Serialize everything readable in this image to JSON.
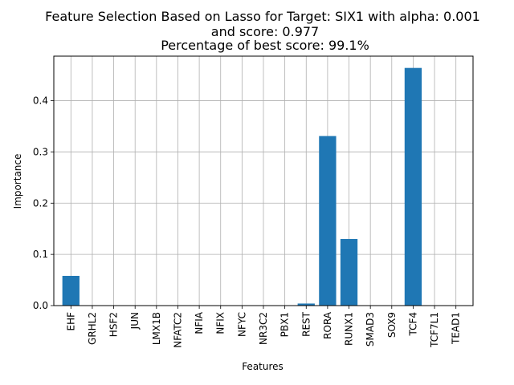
{
  "chart_data": {
    "type": "bar",
    "title_lines": [
      "Feature Selection Based on Lasso for Target: SIX1 with alpha: 0.001",
      "and score: 0.977",
      "Percentage of best score: 99.1%"
    ],
    "xlabel": "Features",
    "ylabel": "Importance",
    "categories": [
      "EHF",
      "GRHL2",
      "HSF2",
      "JUN",
      "LMX1B",
      "NFATC2",
      "NFIA",
      "NFIX",
      "NFYC",
      "NR3C2",
      "PBX1",
      "REST",
      "RORA",
      "RUNX1",
      "SMAD3",
      "SOX9",
      "TCF4",
      "TCF7L1",
      "TEAD1"
    ],
    "values": [
      0.058,
      0,
      0,
      0,
      0,
      0,
      0,
      0,
      0,
      0,
      0,
      0.004,
      0.331,
      0.13,
      0,
      0,
      0.464,
      0,
      0
    ],
    "ylim": [
      0,
      0.487
    ],
    "yticks": [
      0.0,
      0.1,
      0.2,
      0.3,
      0.4
    ],
    "ytick_labels": [
      "0.0",
      "0.1",
      "0.2",
      "0.3",
      "0.4"
    ],
    "grid": true,
    "bar_color": "#1f77b4"
  }
}
